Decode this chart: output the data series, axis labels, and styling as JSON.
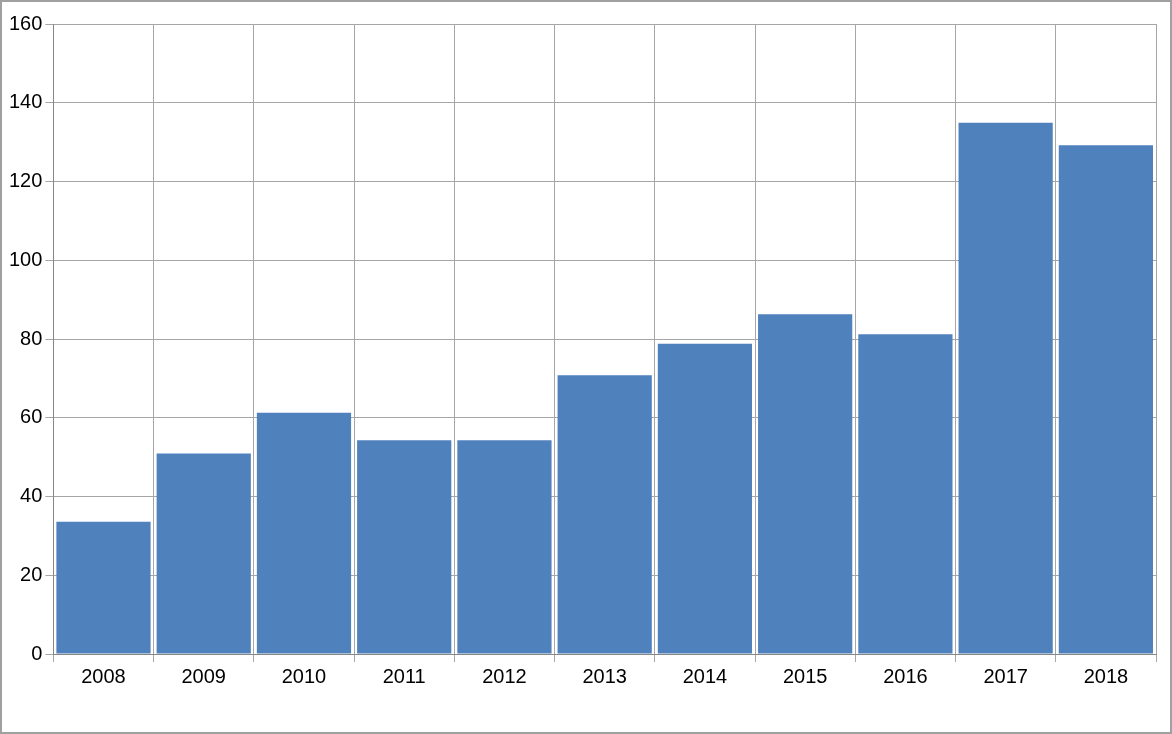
{
  "chart_data": {
    "type": "bar",
    "categories": [
      "2008",
      "2009",
      "2010",
      "2011",
      "2012",
      "2013",
      "2014",
      "2015",
      "2016",
      "2017",
      "2018"
    ],
    "values": [
      33.6,
      50.9,
      61.3,
      54.3,
      54.3,
      70.8,
      78.8,
      86.3,
      81.2,
      134.9,
      129.2
    ],
    "color": "#4f81bd",
    "ylim": [
      0,
      160
    ],
    "yticks": [
      0,
      20,
      40,
      60,
      80,
      100,
      120,
      140,
      160
    ],
    "grid": true,
    "legend": false
  }
}
